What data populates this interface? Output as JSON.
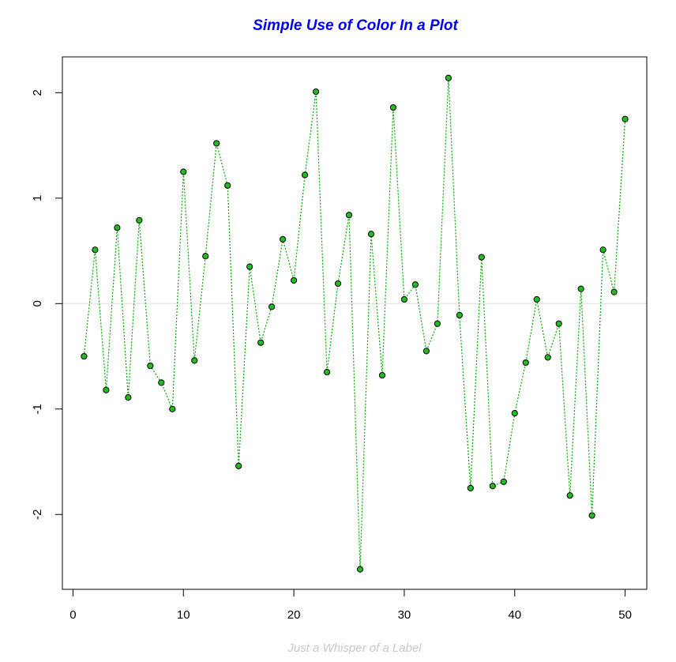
{
  "chart_data": {
    "type": "line",
    "title": "Simple Use of Color In a Plot",
    "xlabel": "Just a Whisper of a Label",
    "ylabel": "",
    "xlim": [
      -0.96,
      51.96
    ],
    "ylim": [
      -2.71,
      2.34
    ],
    "x_ticks": [
      0,
      10,
      20,
      30,
      40,
      50
    ],
    "y_ticks": [
      -2,
      -1,
      0,
      1,
      2
    ],
    "reference_line_y": 0,
    "grid": false,
    "colors": {
      "title": "#0000ee",
      "line": "#00aa00",
      "point_fill": "#22bb22",
      "point_stroke": "#000000",
      "reference_line": "#dddddd",
      "xlabel": "#c8c8c8"
    },
    "series": [
      {
        "x": [
          1,
          2,
          3,
          4,
          5,
          6,
          7,
          8,
          9,
          10,
          11,
          12,
          13,
          14,
          15,
          16,
          17,
          18,
          19,
          20,
          21,
          22,
          23,
          24,
          25,
          26,
          27,
          28,
          29,
          30,
          31,
          32,
          33,
          34,
          35,
          36,
          37,
          38,
          39,
          40,
          41,
          42,
          43,
          44,
          45,
          46,
          47,
          48,
          49,
          50
        ],
        "y": [
          -0.5,
          0.51,
          -0.82,
          0.72,
          -0.89,
          0.79,
          -0.59,
          -0.75,
          -1.0,
          1.25,
          -0.54,
          0.45,
          1.52,
          1.12,
          -1.54,
          0.35,
          -0.37,
          -0.03,
          0.61,
          0.22,
          1.22,
          2.01,
          -0.65,
          0.19,
          0.84,
          -2.52,
          0.66,
          -0.68,
          1.86,
          0.04,
          0.18,
          -0.45,
          -0.19,
          2.14,
          -0.11,
          -1.75,
          0.44,
          -1.73,
          -1.69,
          -1.04,
          -0.56,
          0.04,
          -0.51,
          -0.19,
          -1.82,
          0.14,
          -2.01,
          0.51,
          0.11,
          1.75
        ]
      }
    ]
  }
}
